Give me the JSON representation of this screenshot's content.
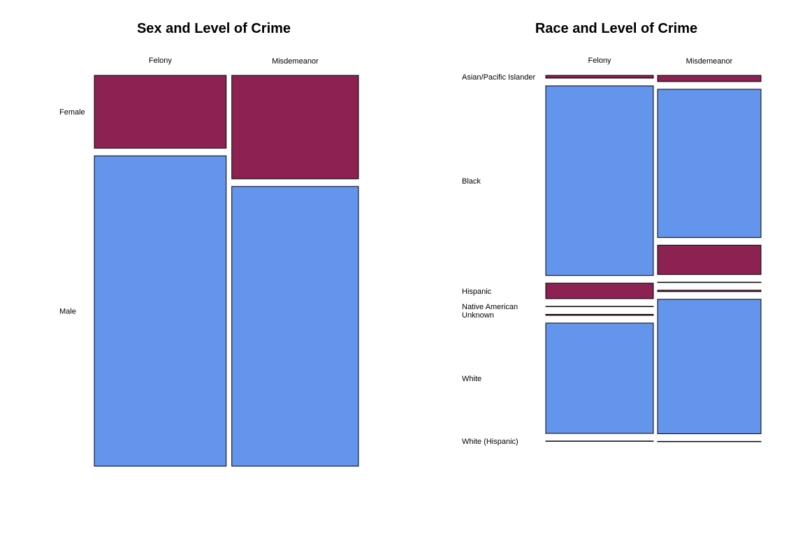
{
  "colors": {
    "female": "#8B2252",
    "male": "#6495ED",
    "border": "#000000"
  },
  "chart_data": [
    {
      "type": "mosaic",
      "title": "Sex and Level of Crime",
      "columns": [
        "Felony",
        "Misdemeanor"
      ],
      "column_shares": [
        0.51,
        0.49
      ],
      "rows": [
        "Female",
        "Male"
      ],
      "row_colors": [
        "female",
        "male"
      ],
      "cells": [
        [
          0.19,
          0.81
        ],
        [
          0.27,
          0.73
        ]
      ]
    },
    {
      "type": "mosaic",
      "title": "Race and Level of Crime",
      "columns": [
        "Felony",
        "Misdemeanor"
      ],
      "column_shares": [
        0.51,
        0.49
      ],
      "rows": [
        "Asian/Pacific Islander",
        "Black",
        "Hispanic",
        "Native American",
        "Unknown",
        "White",
        "White (Hispanic)"
      ],
      "row_colors": [
        "female",
        "male",
        "female",
        "male",
        "female",
        "male",
        "female"
      ],
      "cells": [
        [
          0.008,
          0.55,
          0.045,
          0.001,
          0.003,
          0.32,
          0.001
        ],
        [
          0.018,
          0.43,
          0.085,
          0.001,
          0.004,
          0.39,
          0.001
        ]
      ]
    }
  ]
}
